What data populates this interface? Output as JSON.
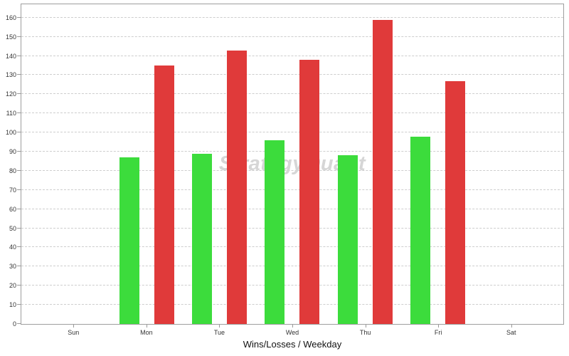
{
  "chart_data": {
    "type": "bar",
    "title": "Wins/Losses / Weekday",
    "watermark": "StrategyQuant",
    "categories": [
      "Sun",
      "Mon",
      "Tue",
      "Wed",
      "Thu",
      "Fri",
      "Sat"
    ],
    "series": [
      {
        "name": "Wins",
        "color": "#3cdc3c",
        "values": [
          null,
          87,
          89,
          96,
          88,
          98,
          null
        ]
      },
      {
        "name": "Losses",
        "color": "#e03a3a",
        "values": [
          null,
          135,
          143,
          138,
          159,
          127,
          null
        ]
      }
    ],
    "yticks": [
      0,
      10,
      20,
      30,
      40,
      50,
      60,
      70,
      80,
      90,
      100,
      110,
      120,
      130,
      140,
      150,
      160
    ],
    "ylim": [
      0,
      167
    ],
    "xlabel": "",
    "ylabel": "",
    "grid": "horizontal-dashed",
    "legend": "none"
  },
  "colors": {
    "wins": "#3cdc3c",
    "losses": "#e03a3a",
    "grid": "#cdcdcd",
    "plot_border": "#9e9e9e",
    "tick": "#999999",
    "tick_label": "#333333",
    "watermark": "#d6d6d6",
    "background": "#ffffff"
  }
}
